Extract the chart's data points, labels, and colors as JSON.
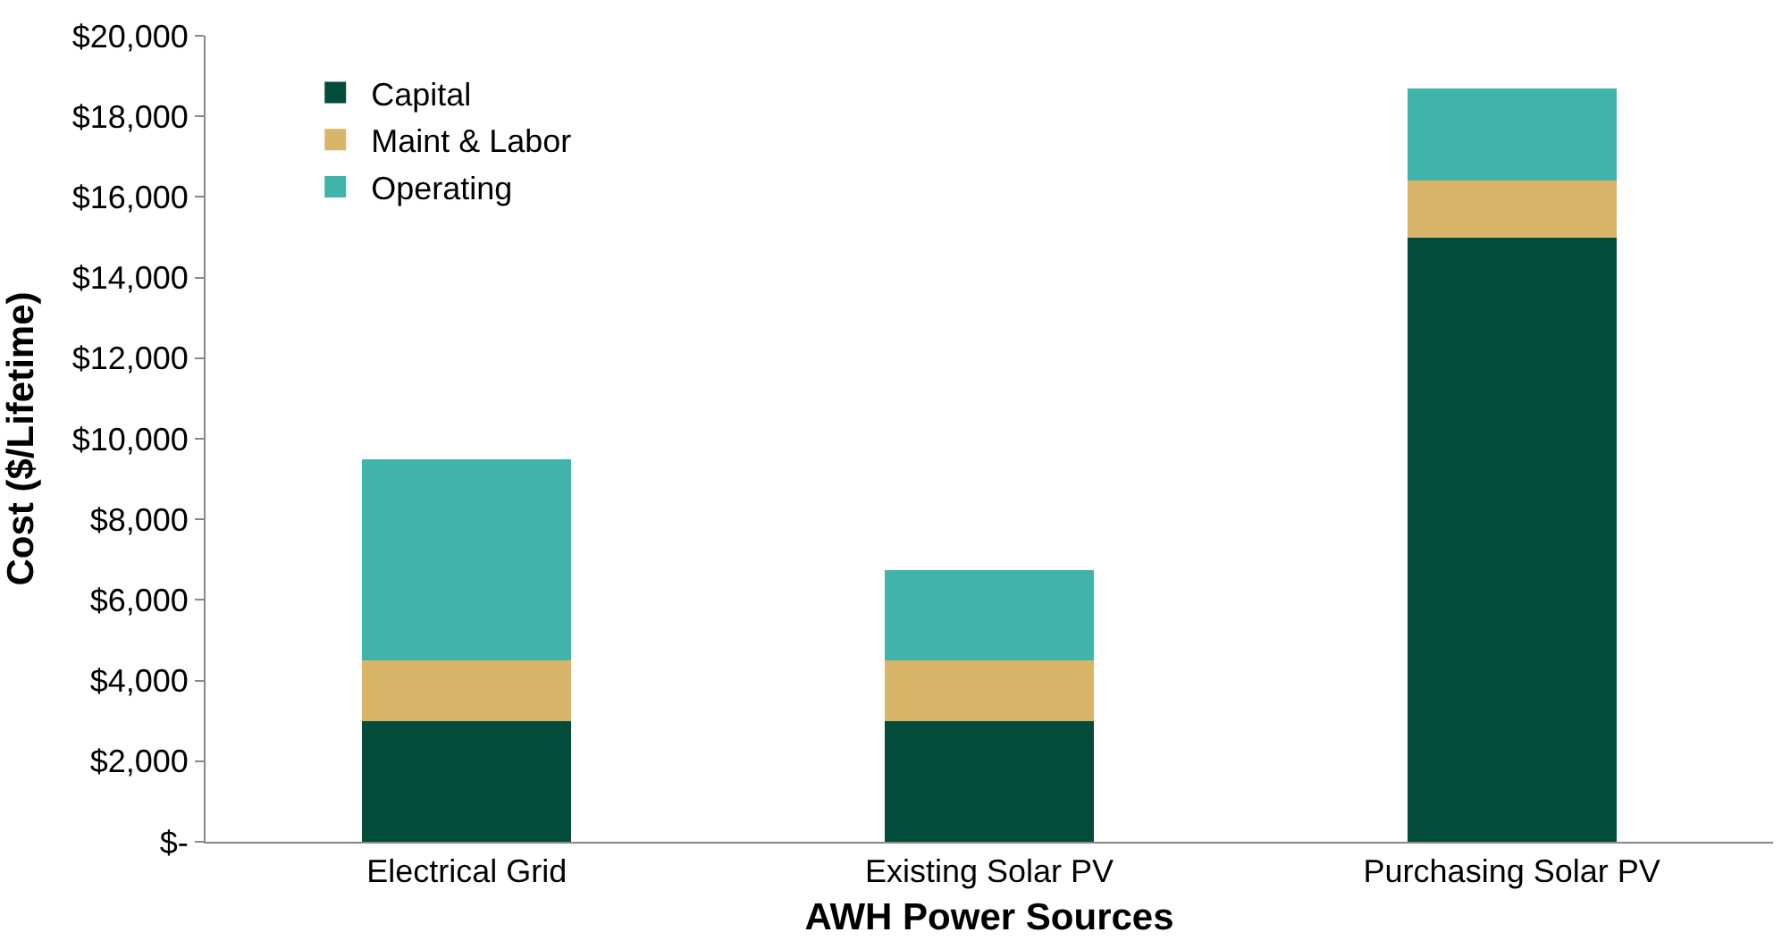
{
  "chart_data": {
    "type": "bar",
    "stacked": true,
    "xlabel": "AWH Power Sources",
    "ylabel": "Cost ($/Lifetime)",
    "categories": [
      "Electrical Grid",
      "Existing Solar PV",
      "Purchasing Solar PV"
    ],
    "series": [
      {
        "name": "Capital",
        "color": "#034c3c",
        "values": [
          3000,
          3000,
          15000
        ]
      },
      {
        "name": "Maint & Labor",
        "color": "#d9b56a",
        "values": [
          1500,
          1500,
          1400
        ]
      },
      {
        "name": "Operating",
        "color": "#40b3aa",
        "values": [
          5000,
          2250,
          2300
        ]
      }
    ],
    "ylim": [
      0,
      20000
    ],
    "yticks": [
      {
        "value": 0,
        "label": "$-"
      },
      {
        "value": 2000,
        "label": "$2,000"
      },
      {
        "value": 4000,
        "label": "$4,000"
      },
      {
        "value": 6000,
        "label": "$6,000"
      },
      {
        "value": 8000,
        "label": "$8,000"
      },
      {
        "value": 10000,
        "label": "$10,000"
      },
      {
        "value": 12000,
        "label": "$12,000"
      },
      {
        "value": 14000,
        "label": "$14,000"
      },
      {
        "value": 16000,
        "label": "$16,000"
      },
      {
        "value": 18000,
        "label": "$18,000"
      },
      {
        "value": 20000,
        "label": "$20,000"
      }
    ],
    "legend": "top left"
  }
}
